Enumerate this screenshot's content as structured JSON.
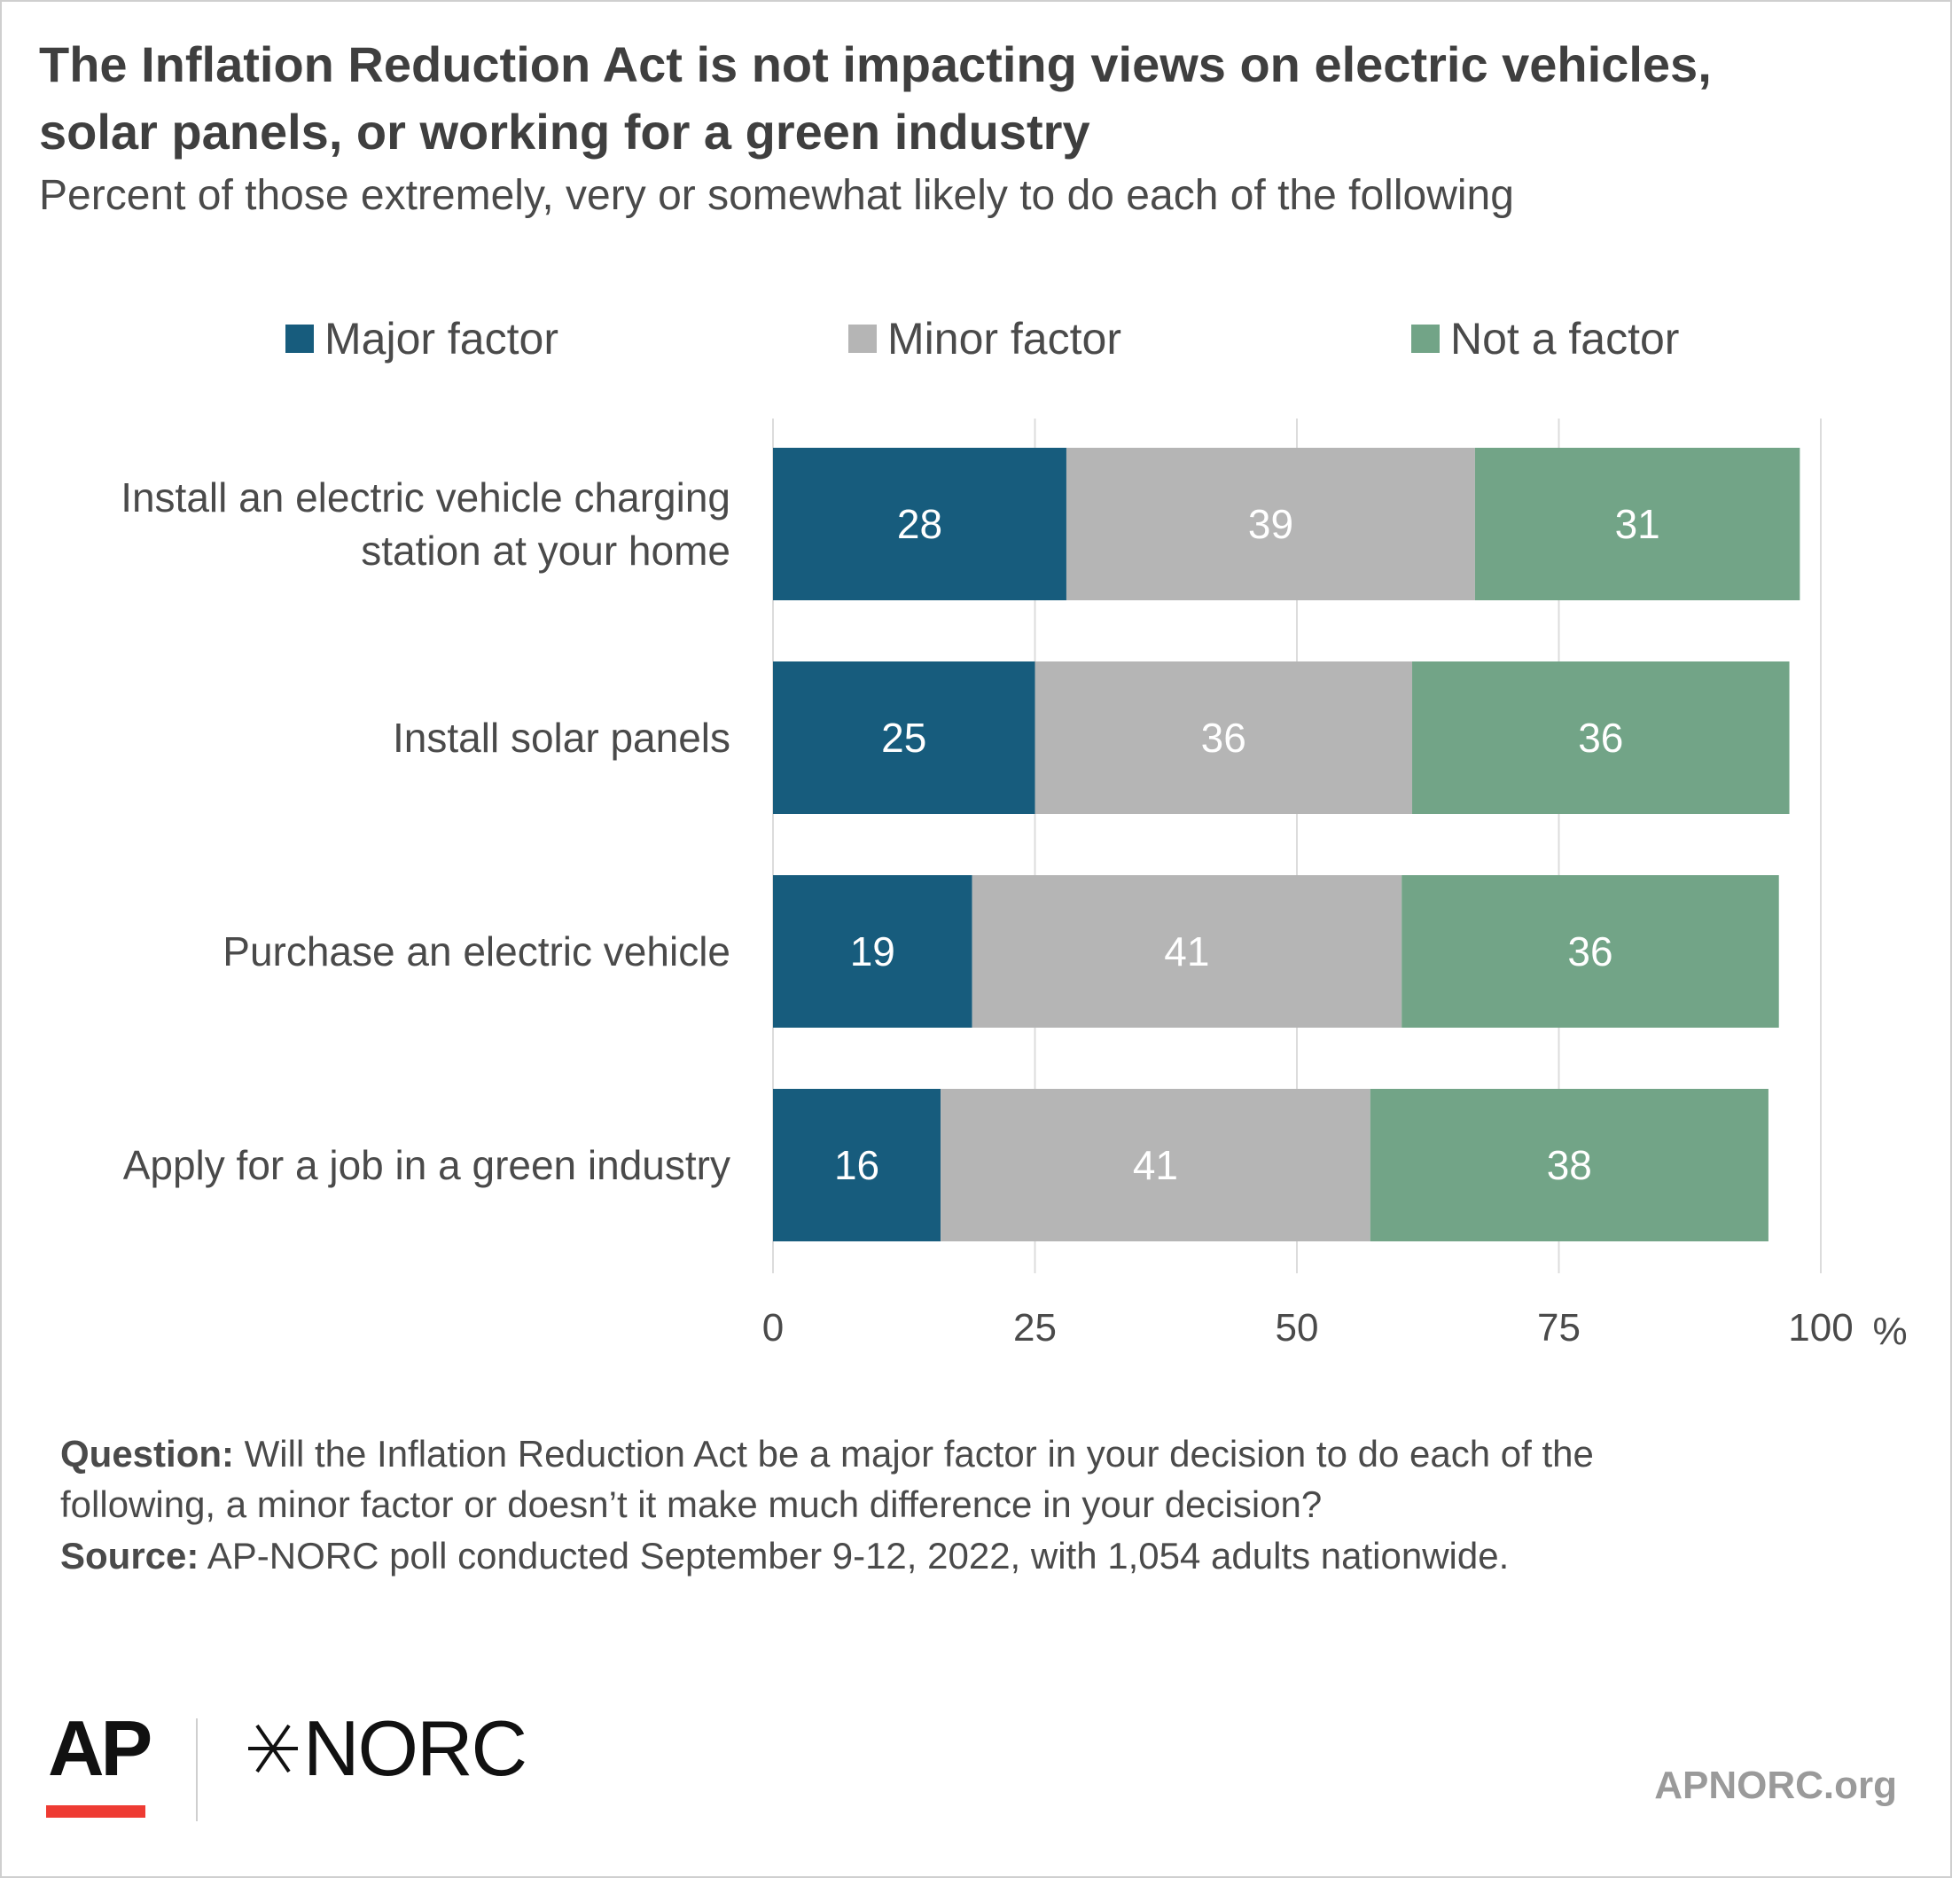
{
  "title_lines": [
    "The Inflation Reduction Act is not impacting views on electric vehicles,",
    "solar panels, or working for a green industry"
  ],
  "subtitle": "Percent of those extremely, very or somewhat likely to do each of the following",
  "chart_data": {
    "type": "bar",
    "orientation": "horizontal",
    "stacked": true,
    "categories": [
      [
        "Install an electric vehicle charging",
        "station at your home"
      ],
      [
        "Install solar panels"
      ],
      [
        "Purchase an electric vehicle"
      ],
      [
        "Apply for a job in a green industry"
      ]
    ],
    "series": [
      {
        "name": "Major factor",
        "color": "#175c7d",
        "values": [
          28,
          25,
          19,
          16
        ]
      },
      {
        "name": "Minor factor",
        "color": "#b5b5b5",
        "values": [
          39,
          36,
          41,
          41
        ]
      },
      {
        "name": "Not a factor",
        "color": "#72a487",
        "values": [
          31,
          36,
          36,
          38
        ]
      }
    ],
    "xlim": [
      0,
      100
    ],
    "xticks": [
      0,
      25,
      50,
      75,
      100
    ],
    "xunit": "%",
    "grid": true,
    "legend_position": "top"
  },
  "notes": {
    "question_label": "Question:",
    "question_lines": [
      " Will the Inflation Reduction Act be a major factor in your decision to do each of the",
      "following, a minor factor or doesn’t it make much difference in your decision?"
    ],
    "source_label": "Source:",
    "source_text": " AP-NORC poll conducted September 9-12, 2022, with 1,054 adults nationwide."
  },
  "branding": {
    "ap": "AP",
    "norc": "NORC",
    "ap_accent_color": "#ee3b33",
    "site": "APNORC.org"
  }
}
